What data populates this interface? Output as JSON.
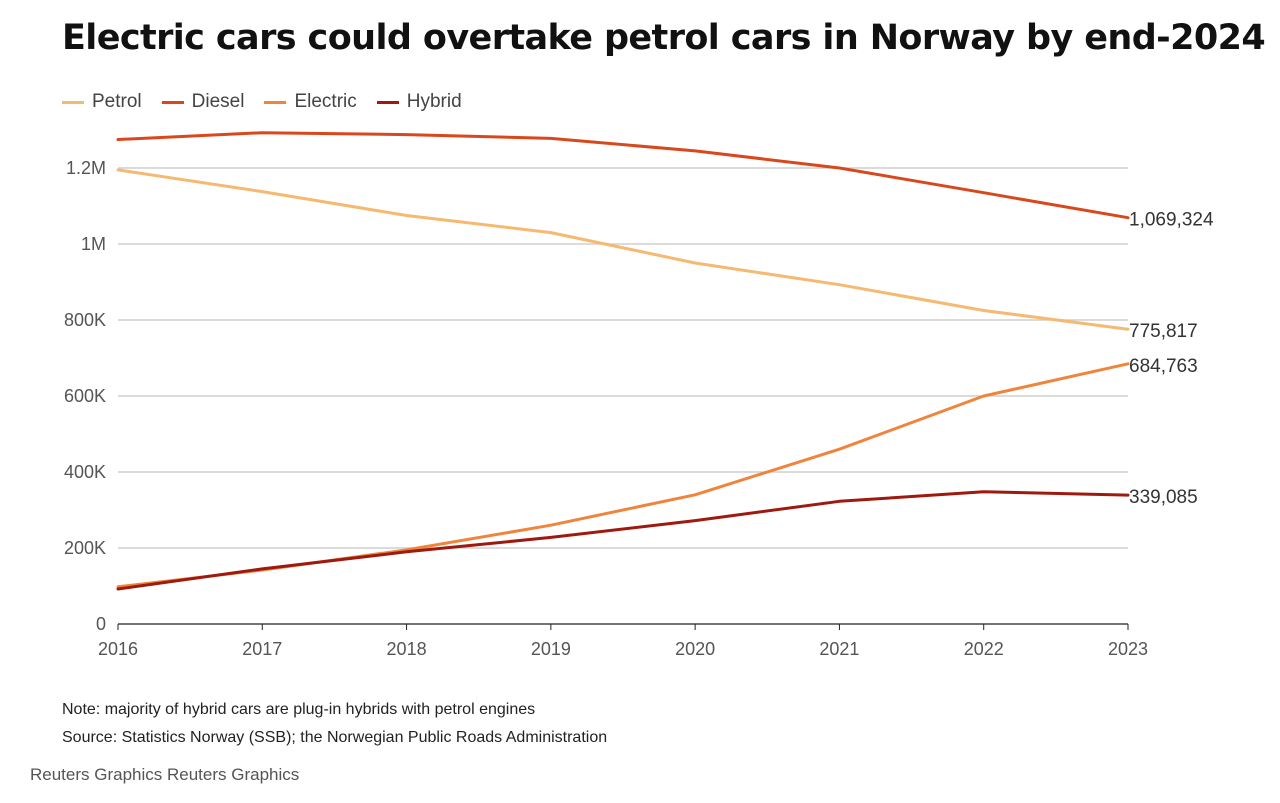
{
  "chart_data": {
    "type": "line",
    "title": "Electric cars could overtake petrol cars in Norway by end-2024",
    "x": [
      "2016",
      "2017",
      "2018",
      "2019",
      "2020",
      "2021",
      "2022",
      "2023"
    ],
    "ylim": [
      0,
      1300000
    ],
    "yticks": [
      {
        "value": 0,
        "label": "0"
      },
      {
        "value": 200000,
        "label": "200K"
      },
      {
        "value": 400000,
        "label": "400K"
      },
      {
        "value": 600000,
        "label": "600K"
      },
      {
        "value": 800000,
        "label": "800K"
      },
      {
        "value": 1000000,
        "label": "1M"
      },
      {
        "value": 1200000,
        "label": "1.2M"
      }
    ],
    "grid": true,
    "legend_position": "top-left",
    "series": [
      {
        "name": "Petrol",
        "color": "#f5b971",
        "values": [
          1195000,
          1138000,
          1075000,
          1030000,
          950000,
          893000,
          825000,
          775817
        ],
        "end_label": "775,817"
      },
      {
        "name": "Diesel",
        "color": "#d9481c",
        "values": [
          1275000,
          1293000,
          1288000,
          1278000,
          1245000,
          1200000,
          1135000,
          1069324
        ],
        "end_label": "1,069,324"
      },
      {
        "name": "Electric",
        "color": "#f0843c",
        "values": [
          98000,
          142000,
          195000,
          260000,
          340000,
          460000,
          600000,
          684763
        ],
        "end_label": "684,763"
      },
      {
        "name": "Hybrid",
        "color": "#9e1a0f",
        "values": [
          92000,
          145000,
          190000,
          228000,
          272000,
          323000,
          348000,
          339085
        ],
        "end_label": "339,085"
      }
    ]
  },
  "footer": {
    "note": "Note: majority of hybrid cars are plug-in hybrids with petrol engines",
    "source": "Source: Statistics Norway (SSB); the Norwegian Public Roads Administration",
    "credit": "Reuters Graphics Reuters Graphics"
  }
}
